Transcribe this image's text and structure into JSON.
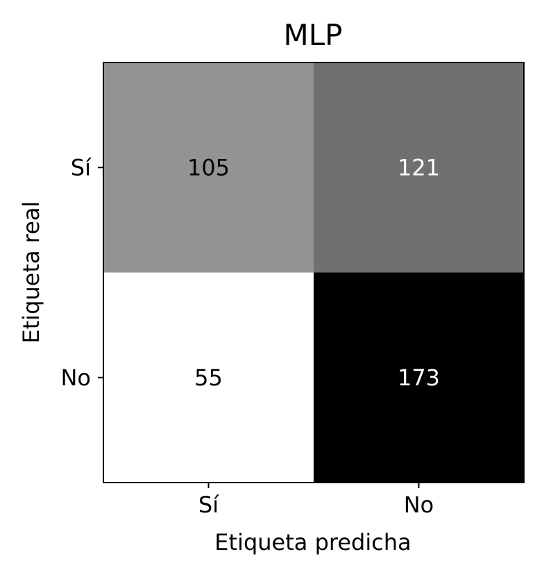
{
  "chart_data": {
    "type": "heatmap",
    "title": "MLP",
    "xlabel": "Etiqueta predicha",
    "ylabel": "Etiqueta real",
    "x_categories": [
      "Sí",
      "No"
    ],
    "y_categories": [
      "Sí",
      "No"
    ],
    "values": [
      [
        105,
        121
      ],
      [
        55,
        173
      ]
    ],
    "colormap": "grayscale (low = white, high = black)",
    "grid": false,
    "colorbar": false
  }
}
